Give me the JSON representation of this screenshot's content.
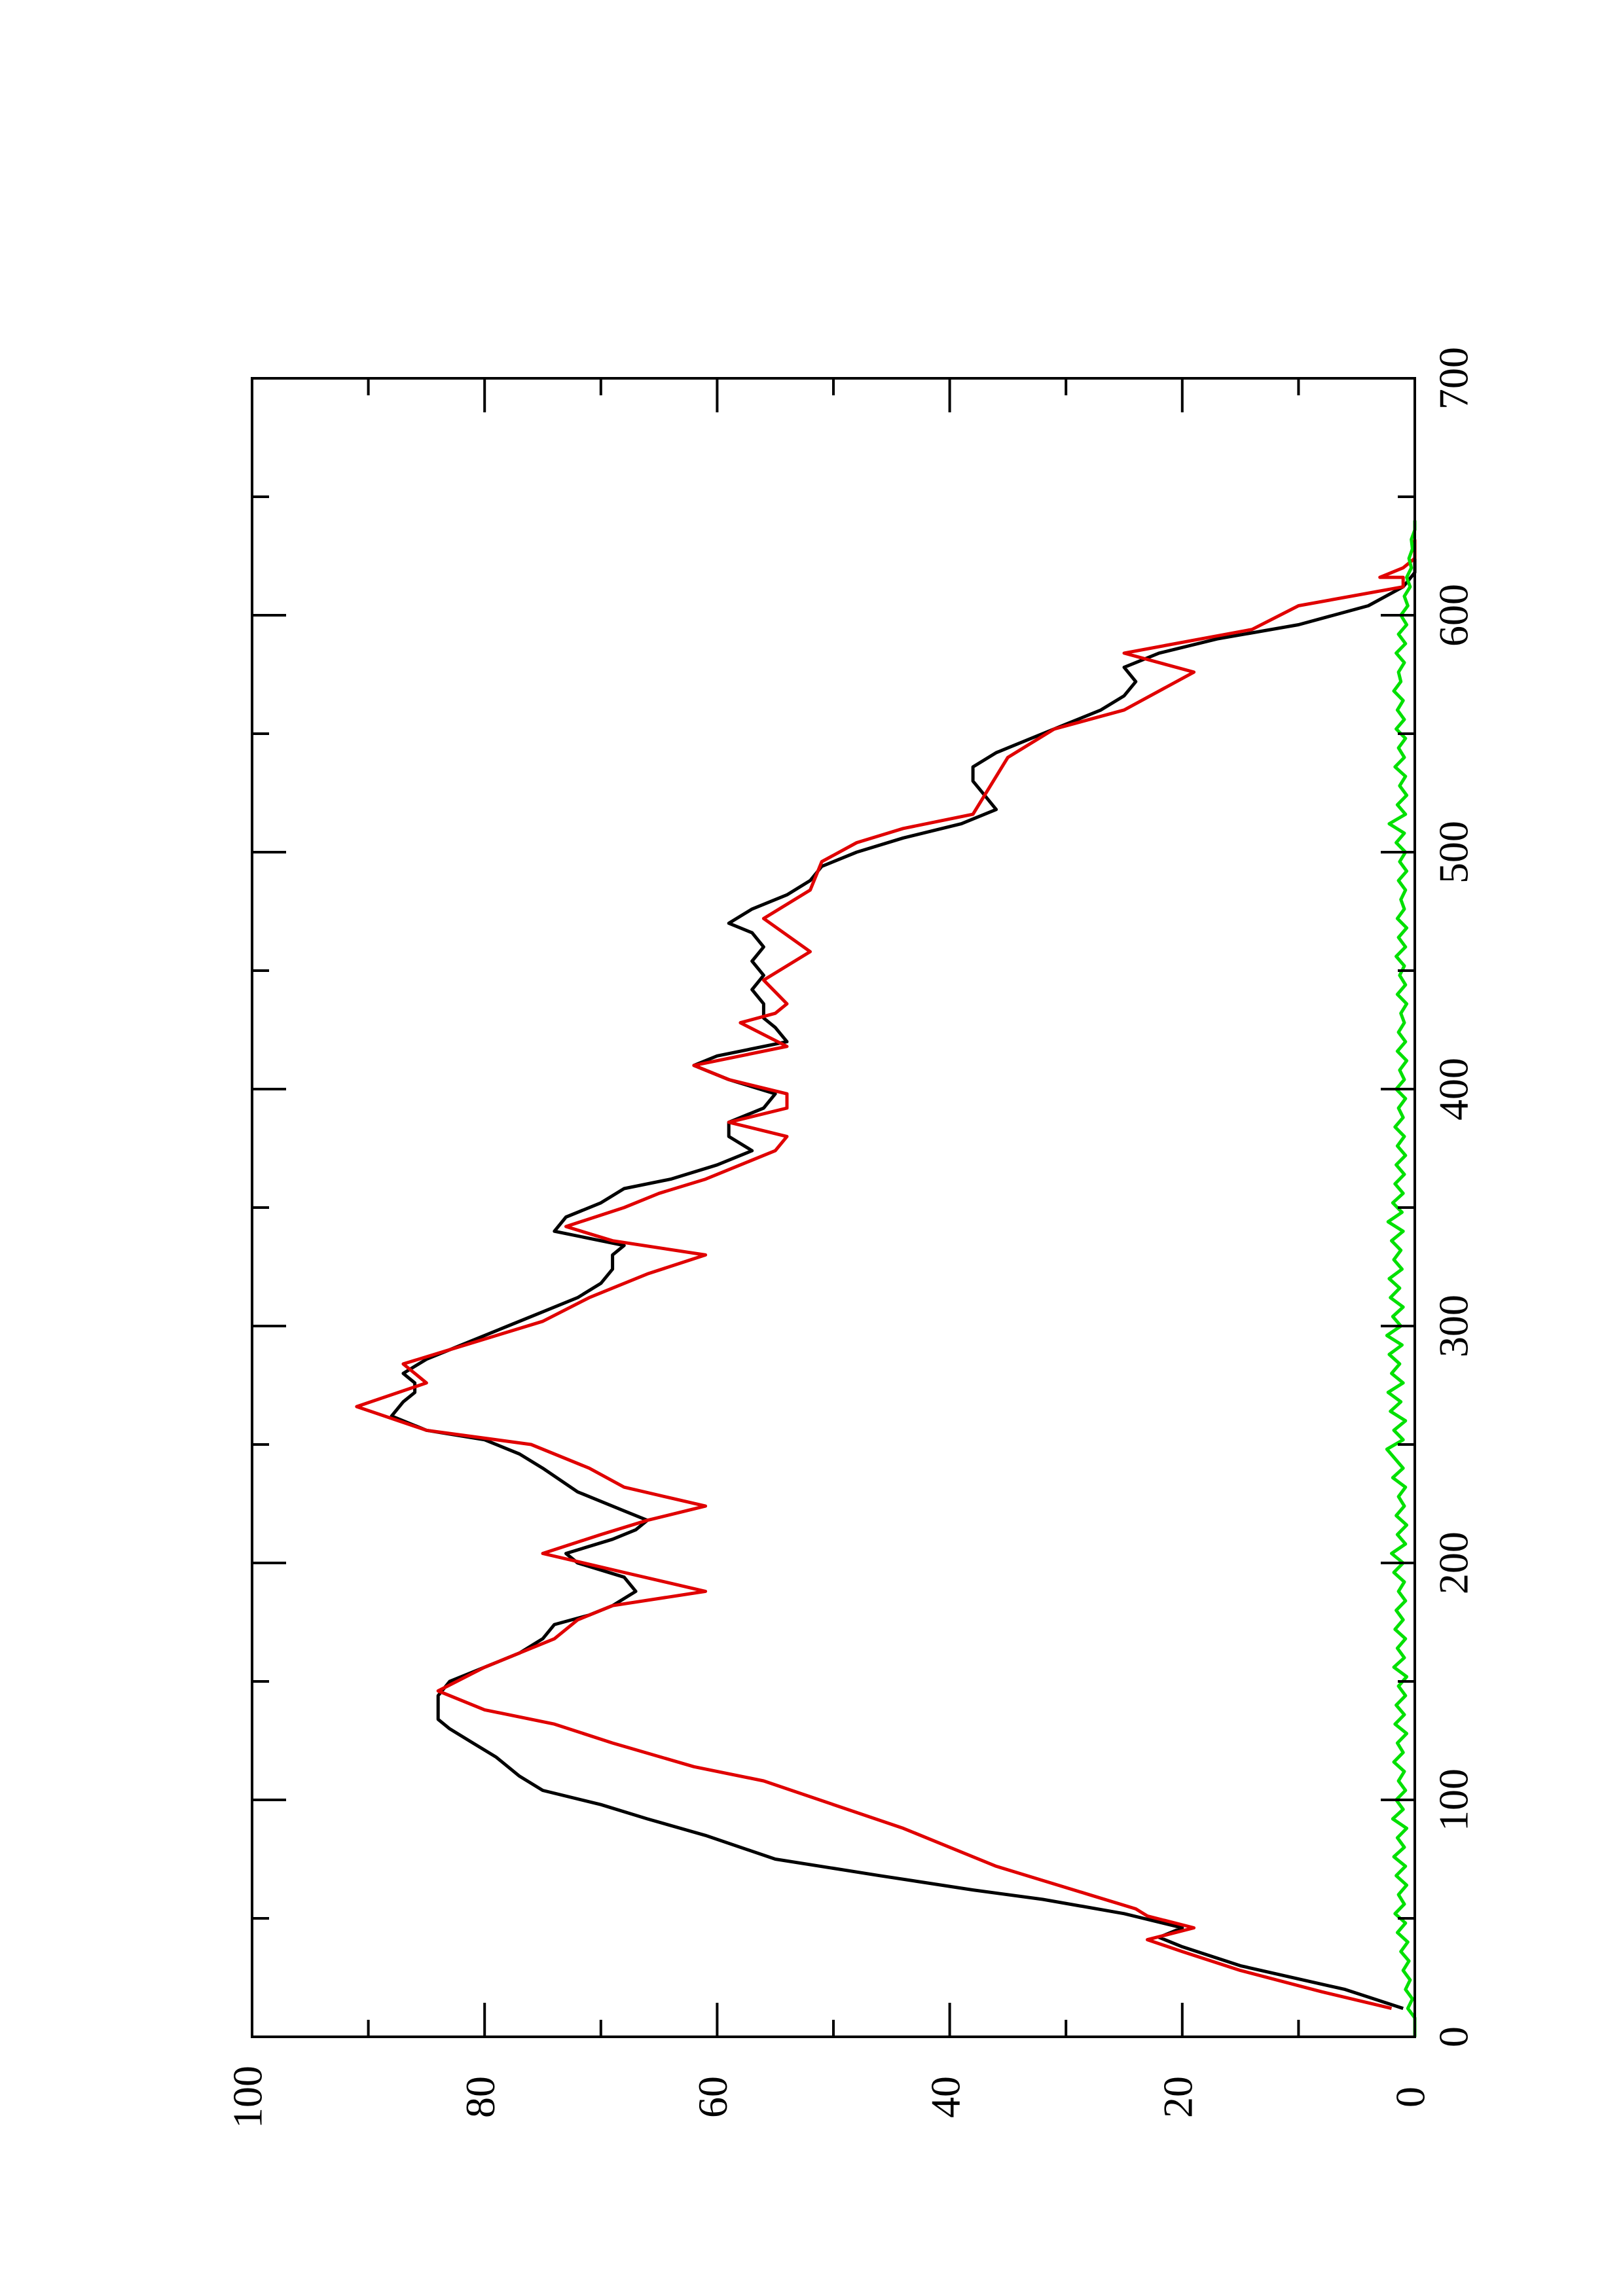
{
  "chart_data": {
    "type": "line",
    "orientation": "rotated-90-ccw",
    "title": "",
    "xlabel": "",
    "ylabel": "",
    "xlim": [
      0,
      700
    ],
    "ylim": [
      0,
      100
    ],
    "x_ticks": [
      0,
      100,
      200,
      300,
      400,
      500,
      600,
      700
    ],
    "x_minor_ticks": [
      50,
      150,
      250,
      350,
      450,
      550,
      650
    ],
    "y_ticks": [
      0,
      20,
      40,
      60,
      80,
      100
    ],
    "y_minor_ticks": [
      10,
      30,
      50,
      70,
      90
    ],
    "grid": false,
    "legend": "none",
    "series": [
      {
        "color": "#000000",
        "x": [
          12,
          20,
          30,
          38,
          42,
          46,
          52,
          58,
          62,
          68,
          75,
          85,
          92,
          98,
          104,
          110,
          118,
          124,
          130,
          134,
          140,
          144,
          150,
          156,
          162,
          168,
          174,
          178,
          182,
          188,
          194,
          200,
          204,
          210,
          214,
          218,
          222,
          230,
          240,
          246,
          252,
          256,
          262,
          268,
          272,
          276,
          280,
          286,
          292,
          300,
          306,
          312,
          318,
          324,
          330,
          334,
          340,
          346,
          352,
          358,
          362,
          368,
          374,
          380,
          386,
          392,
          398,
          404,
          410,
          414,
          420,
          426,
          430,
          436,
          442,
          448,
          454,
          460,
          466,
          470,
          476,
          482,
          488,
          494,
          500,
          506,
          512,
          518,
          524,
          530,
          536,
          542,
          548,
          554,
          560,
          566,
          572,
          578,
          584,
          590,
          596,
          604,
          612,
          618,
          624,
          630
        ],
        "y": [
          1,
          6,
          15,
          20,
          22,
          20,
          25,
          32,
          38,
          46,
          55,
          61,
          66,
          70,
          75,
          77,
          79,
          81,
          83,
          84,
          84,
          84,
          83,
          80,
          77,
          75,
          74,
          71,
          69,
          67,
          68,
          72,
          73,
          69,
          67,
          66,
          68,
          72,
          75,
          77,
          80,
          85,
          88,
          87,
          86,
          86,
          87,
          85,
          82,
          78,
          75,
          72,
          70,
          69,
          69,
          68,
          74,
          73,
          70,
          68,
          64,
          60,
          57,
          59,
          59,
          56,
          55,
          59,
          62,
          60,
          54,
          55,
          56,
          56,
          57,
          56,
          57,
          56,
          57,
          59,
          57,
          54,
          52,
          51,
          48,
          44,
          39,
          36,
          37,
          38,
          38,
          36,
          33,
          30,
          27,
          25,
          24,
          25,
          22,
          17,
          10,
          4,
          1,
          0,
          0,
          0
        ]
      },
      {
        "color": "#e00000",
        "x": [
          12,
          19,
          19,
          28,
          28,
          36,
          36,
          41,
          46,
          46,
          51,
          54,
          60,
          60,
          66,
          66,
          72,
          72,
          80,
          80,
          88,
          88,
          98,
          108,
          108,
          114,
          114,
          124,
          124,
          132,
          132,
          138,
          146,
          146,
          156,
          156,
          162,
          162,
          168,
          168,
          176,
          176,
          182,
          188,
          188,
          196,
          204,
          212,
          212,
          218,
          224,
          224,
          232,
          232,
          240,
          240,
          250,
          256,
          266,
          276,
          276,
          284,
          284,
          290,
          290,
          296,
          302,
          302,
          312,
          312,
          322,
          322,
          330,
          330,
          336,
          336,
          342,
          350,
          356,
          356,
          362,
          368,
          374,
          380,
          380,
          386,
          392,
          398,
          404,
          404,
          410,
          418,
          418,
          428,
          428,
          432,
          436,
          436,
          446,
          446,
          458,
          458,
          472,
          472,
          484,
          484,
          496,
          496,
          504,
          504,
          510,
          510,
          516,
          516,
          540,
          540,
          552,
          552,
          560,
          560,
          576,
          576,
          584,
          584,
          594,
          594,
          604,
          612,
          616,
          616,
          620,
          624,
          628,
          632
        ],
        "y": [
          2,
          8,
          8,
          15,
          15,
          20,
          20,
          23,
          19,
          19,
          23,
          24,
          28,
          28,
          32,
          32,
          36,
          36,
          40,
          40,
          44,
          44,
          50,
          56,
          56,
          62,
          62,
          69,
          69,
          74,
          74,
          80,
          84,
          84,
          80,
          80,
          77,
          77,
          74,
          74,
          72,
          72,
          69,
          61,
          61,
          68,
          75,
          70,
          70,
          66,
          61,
          61,
          68,
          68,
          71,
          71,
          76,
          85,
          91,
          85,
          85,
          87,
          87,
          83,
          83,
          79,
          75,
          75,
          71,
          71,
          66,
          66,
          61,
          61,
          69,
          69,
          73,
          68,
          65,
          65,
          61,
          58,
          55,
          54,
          54,
          59,
          54,
          54,
          59,
          59,
          62,
          54,
          54,
          58,
          58,
          55,
          54,
          54,
          56,
          56,
          52,
          52,
          56,
          56,
          52,
          52,
          51,
          51,
          48,
          48,
          44,
          44,
          38,
          38,
          35,
          35,
          31,
          31,
          25,
          25,
          19,
          19,
          25,
          25,
          14,
          14,
          10,
          1,
          1,
          3,
          1,
          0,
          0,
          0
        ]
      },
      {
        "color": "#00e000",
        "x": [
          0,
          8,
          12,
          16,
          20,
          24,
          28,
          32,
          36,
          40,
          44,
          48,
          52,
          56,
          60,
          64,
          68,
          72,
          76,
          80,
          84,
          88,
          92,
          96,
          100,
          104,
          108,
          112,
          116,
          120,
          124,
          128,
          132,
          136,
          140,
          144,
          148,
          152,
          156,
          160,
          164,
          168,
          172,
          176,
          180,
          184,
          188,
          192,
          196,
          200,
          204,
          208,
          212,
          216,
          220,
          224,
          228,
          232,
          236,
          240,
          244,
          248,
          252,
          256,
          260,
          264,
          268,
          272,
          276,
          280,
          284,
          288,
          292,
          296,
          300,
          304,
          308,
          312,
          316,
          320,
          324,
          328,
          332,
          336,
          340,
          344,
          348,
          352,
          356,
          360,
          364,
          368,
          372,
          376,
          380,
          384,
          388,
          392,
          396,
          400,
          404,
          408,
          412,
          416,
          420,
          424,
          428,
          432,
          436,
          440,
          444,
          448,
          452,
          456,
          460,
          464,
          468,
          472,
          476,
          480,
          484,
          488,
          492,
          496,
          500,
          504,
          508,
          512,
          516,
          520,
          524,
          528,
          532,
          536,
          540,
          544,
          548,
          552,
          556,
          560,
          564,
          568,
          572,
          576,
          580,
          584,
          588,
          592,
          596,
          600,
          604,
          608,
          612,
          616,
          620,
          624,
          628,
          632,
          636,
          640
        ],
        "y": [
          0,
          0,
          0.6,
          0.2,
          0.8,
          0.4,
          1.0,
          0.5,
          1.2,
          0.6,
          1.5,
          0.8,
          1.7,
          0.9,
          1.4,
          0.7,
          1.6,
          0.8,
          1.8,
          0.9,
          1.5,
          0.7,
          1.9,
          1.0,
          1.6,
          0.8,
          1.4,
          0.9,
          1.8,
          1.0,
          1.5,
          0.7,
          1.7,
          0.9,
          1.6,
          0.8,
          1.4,
          0.7,
          1.8,
          0.9,
          1.5,
          0.8,
          1.7,
          1.0,
          1.6,
          0.8,
          1.4,
          0.9,
          1.8,
          1.0,
          2.0,
          0.8,
          1.5,
          0.7,
          1.6,
          0.9,
          1.4,
          0.8,
          1.9,
          1.0,
          1.7,
          2.4,
          1.0,
          1.8,
          0.8,
          2.1,
          1.2,
          2.3,
          1.0,
          2.0,
          1.3,
          2.2,
          1.1,
          2.4,
          1.2,
          1.9,
          1.0,
          2.1,
          1.3,
          2.2,
          1.1,
          1.8,
          1.2,
          2.0,
          1.0,
          2.3,
          1.1,
          1.9,
          1.0,
          1.7,
          0.9,
          1.6,
          0.8,
          1.5,
          0.9,
          1.7,
          1.0,
          1.4,
          0.8,
          1.6,
          0.9,
          1.3,
          0.7,
          1.5,
          0.8,
          1.4,
          0.9,
          1.2,
          0.7,
          1.5,
          0.8,
          1.3,
          0.9,
          1.6,
          0.8,
          1.4,
          0.7,
          1.5,
          0.9,
          1.2,
          0.8,
          1.4,
          0.7,
          1.3,
          0.8,
          1.6,
          0.9,
          2.2,
          0.8,
          1.5,
          0.7,
          1.3,
          0.8,
          1.7,
          0.9,
          1.4,
          0.8,
          1.6,
          0.9,
          1.5,
          1.0,
          1.8,
          1.2,
          1.4,
          0.9,
          1.6,
          0.8,
          1.4,
          0.7,
          1.2,
          0.6,
          0.9,
          0.4,
          0.7,
          0.3,
          0.5,
          0.2,
          0.3,
          0,
          0
        ]
      }
    ]
  }
}
